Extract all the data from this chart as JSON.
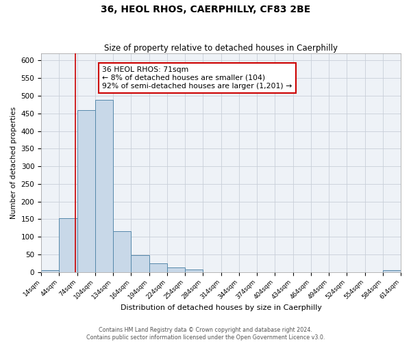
{
  "title": "36, HEOL RHOS, CAERPHILLY, CF83 2BE",
  "subtitle": "Size of property relative to detached houses in Caerphilly",
  "xlabel": "Distribution of detached houses by size in Caerphilly",
  "ylabel": "Number of detached properties",
  "bar_color": "#c8d8e8",
  "bar_edge_color": "#5588aa",
  "background_color": "#eef2f7",
  "grid_color": "#c8cfd8",
  "vline_color": "#cc0000",
  "vline_x": 71,
  "bin_edges": [
    14,
    44,
    74,
    104,
    134,
    164,
    194,
    224,
    254,
    284,
    314,
    344,
    374,
    404,
    434,
    464,
    494,
    524,
    554,
    584,
    614
  ],
  "bar_heights": [
    5,
    153,
    460,
    488,
    116,
    48,
    24,
    13,
    8,
    0,
    0,
    0,
    0,
    0,
    0,
    0,
    0,
    0,
    0,
    5
  ],
  "ylim": [
    0,
    620
  ],
  "yticks": [
    0,
    50,
    100,
    150,
    200,
    250,
    300,
    350,
    400,
    450,
    500,
    550,
    600
  ],
  "annotation_text": "36 HEOL RHOS: 71sqm\n← 8% of detached houses are smaller (104)\n92% of semi-detached houses are larger (1,201) →",
  "annotation_box_color": "#ffffff",
  "annotation_box_edge": "#cc0000",
  "footer_line1": "Contains HM Land Registry data © Crown copyright and database right 2024.",
  "footer_line2": "Contains public sector information licensed under the Open Government Licence v3.0.",
  "tick_labels": [
    "14sqm",
    "44sqm",
    "74sqm",
    "104sqm",
    "134sqm",
    "164sqm",
    "194sqm",
    "224sqm",
    "254sqm",
    "284sqm",
    "314sqm",
    "344sqm",
    "374sqm",
    "404sqm",
    "434sqm",
    "464sqm",
    "494sqm",
    "524sqm",
    "554sqm",
    "584sqm",
    "614sqm"
  ]
}
